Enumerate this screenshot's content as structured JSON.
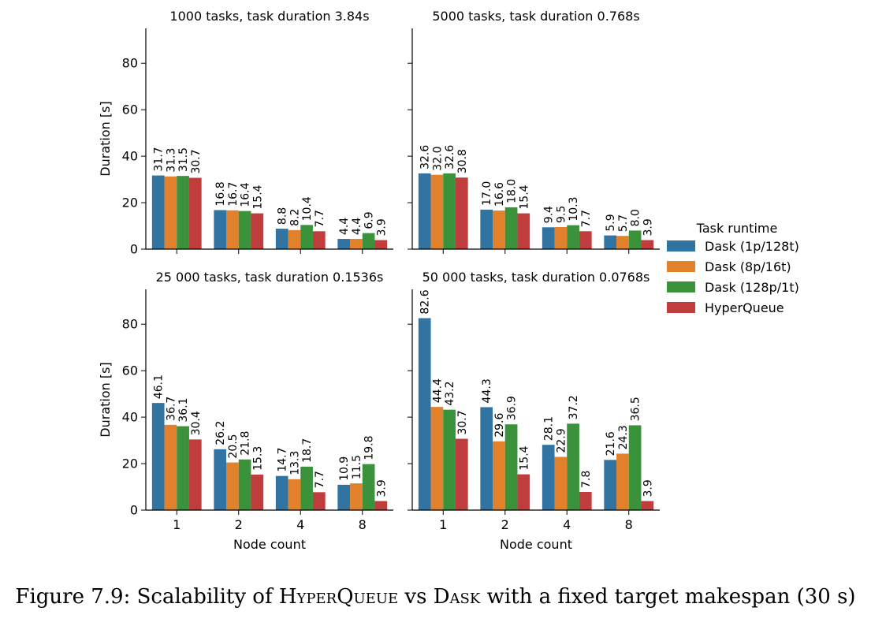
{
  "chart_data": {
    "type": "bar",
    "layout": "2x2 facet grid, shared x and y axes",
    "categories": [
      "1",
      "2",
      "4",
      "8"
    ],
    "xlabel": "Node count",
    "ylabel": "Duration [s]",
    "ylim": [
      0,
      95
    ],
    "yticks": [
      0,
      20,
      40,
      60,
      80
    ],
    "grid": false,
    "legend": {
      "title": "Task runtime",
      "placement": "right",
      "entries": [
        {
          "name": "Dask (1p/128t)",
          "color": "#3274a1"
        },
        {
          "name": "Dask (8p/16t)",
          "color": "#e1812c"
        },
        {
          "name": "Dask (128p/1t)",
          "color": "#3a923a"
        },
        {
          "name": "HyperQueue",
          "color": "#c03d3e"
        }
      ]
    },
    "panels": [
      {
        "title": "1000 tasks, task duration 3.84s",
        "series": [
          {
            "name": "Dask (1p/128t)",
            "values": [
              31.7,
              16.8,
              8.8,
              4.4
            ]
          },
          {
            "name": "Dask (8p/16t)",
            "values": [
              31.3,
              16.7,
              8.2,
              4.4
            ]
          },
          {
            "name": "Dask (128p/1t)",
            "values": [
              31.5,
              16.4,
              10.4,
              6.9
            ]
          },
          {
            "name": "HyperQueue",
            "values": [
              30.7,
              15.4,
              7.7,
              3.9
            ]
          }
        ]
      },
      {
        "title": "5000 tasks, task duration 0.768s",
        "series": [
          {
            "name": "Dask (1p/128t)",
            "values": [
              32.6,
              17.0,
              9.4,
              5.9
            ]
          },
          {
            "name": "Dask (8p/16t)",
            "values": [
              32.0,
              16.6,
              9.5,
              5.7
            ]
          },
          {
            "name": "Dask (128p/1t)",
            "values": [
              32.6,
              18.0,
              10.3,
              8.0
            ]
          },
          {
            "name": "HyperQueue",
            "values": [
              30.8,
              15.4,
              7.7,
              3.9
            ]
          }
        ]
      },
      {
        "title": "25 000 tasks, task duration 0.1536s",
        "series": [
          {
            "name": "Dask (1p/128t)",
            "values": [
              46.1,
              26.2,
              14.7,
              10.9
            ]
          },
          {
            "name": "Dask (8p/16t)",
            "values": [
              36.7,
              20.5,
              13.3,
              11.5
            ]
          },
          {
            "name": "Dask (128p/1t)",
            "values": [
              36.1,
              21.8,
              18.7,
              19.8
            ]
          },
          {
            "name": "HyperQueue",
            "values": [
              30.4,
              15.3,
              7.7,
              3.9
            ]
          }
        ]
      },
      {
        "title": "50 000 tasks, task duration 0.0768s",
        "series": [
          {
            "name": "Dask (1p/128t)",
            "values": [
              82.6,
              44.3,
              28.1,
              21.6
            ]
          },
          {
            "name": "Dask (8p/16t)",
            "values": [
              44.4,
              29.6,
              22.9,
              24.3
            ]
          },
          {
            "name": "Dask (128p/1t)",
            "values": [
              43.2,
              36.9,
              37.2,
              36.5
            ]
          },
          {
            "name": "HyperQueue",
            "values": [
              30.7,
              15.4,
              7.8,
              3.9
            ]
          }
        ]
      }
    ]
  },
  "caption": {
    "prefix": "Figure 7.9: Scalability of ",
    "name1": "HyperQueue",
    "middle": " vs ",
    "name2": "Dask",
    "suffix": " with a fixed target makespan (30 s)"
  }
}
